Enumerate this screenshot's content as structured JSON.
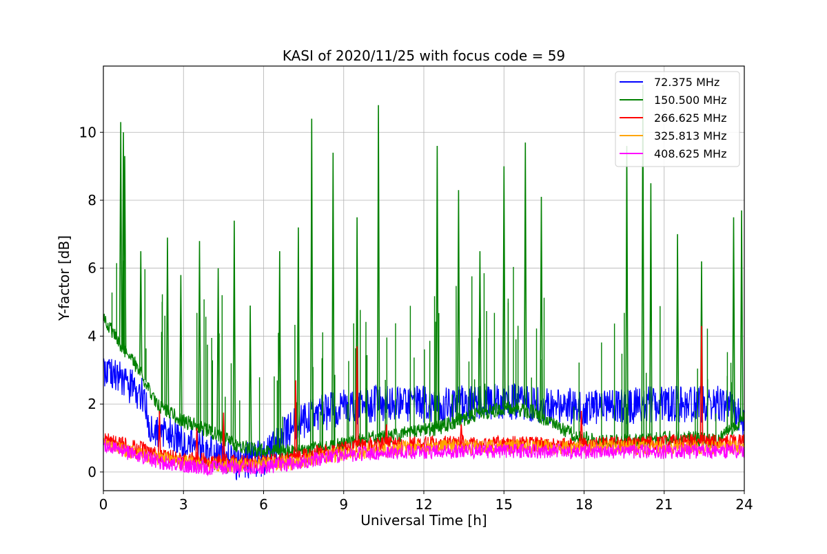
{
  "chart_data": {
    "type": "line",
    "title": "KASI of 2020/11/25 with focus code = 59",
    "xlabel": "Universal Time [h]",
    "ylabel": "Y-factor [dB]",
    "xlim": [
      0,
      24
    ],
    "ylim": [
      -0.55,
      11.95
    ],
    "x_ticks": [
      0,
      3,
      6,
      9,
      12,
      15,
      18,
      21,
      24
    ],
    "y_ticks": [
      0,
      2,
      4,
      6,
      8,
      10
    ],
    "grid": true,
    "legend_position": "top-right",
    "series": [
      {
        "name": " 72.375 MHz",
        "color": "#0000ff",
        "baseline": {
          "x": [
            0,
            0.5,
            1.0,
            1.5,
            1.7,
            2.0,
            3.0,
            4.0,
            5.0,
            6.0,
            6.5,
            7.0,
            8.0,
            9.0,
            10.0,
            11.0,
            12.0,
            13.0,
            14.0,
            15.0,
            16.0,
            17.0,
            18.0,
            19.0,
            20.0,
            21.0,
            22.0,
            23.0,
            23.5,
            24.0
          ],
          "y": [
            3.1,
            2.8,
            2.5,
            2.3,
            1.4,
            1.3,
            0.9,
            0.6,
            0.3,
            0.4,
            0.9,
            1.3,
            1.7,
            1.9,
            2.0,
            2.0,
            2.0,
            2.0,
            2.0,
            2.1,
            2.0,
            1.95,
            1.9,
            1.9,
            1.95,
            2.0,
            2.0,
            2.0,
            1.8,
            1.5
          ]
        },
        "band": 0.55
      },
      {
        "name": "150.500 MHz",
        "color": "#008000",
        "baseline": {
          "x": [
            0,
            0.5,
            1.0,
            1.5,
            2.0,
            3.0,
            4.0,
            5.0,
            6.0,
            7.0,
            8.0,
            9.0,
            10.0,
            11.0,
            12.0,
            13.0,
            14.0,
            15.0,
            16.0,
            17.0,
            18.0,
            19.0,
            20.0,
            21.0,
            22.0,
            23.0,
            24.0
          ],
          "y": [
            4.6,
            3.9,
            3.4,
            2.8,
            2.0,
            1.5,
            1.2,
            0.8,
            0.6,
            0.6,
            0.7,
            0.8,
            1.0,
            1.1,
            1.2,
            1.4,
            1.7,
            1.9,
            1.8,
            1.3,
            1.0,
            0.9,
            0.9,
            1.0,
            1.0,
            0.9,
            1.6
          ]
        },
        "spikes": {
          "x": [
            0.65,
            0.75,
            0.8,
            1.4,
            2.4,
            2.9,
            3.6,
            4.3,
            4.9,
            5.5,
            6.6,
            7.3,
            7.8,
            8.6,
            9.5,
            10.3,
            12.5,
            13.3,
            14.1,
            15.0,
            15.8,
            16.4,
            19.6,
            20.2,
            20.5,
            21.5,
            22.4,
            23.6,
            23.9
          ],
          "y": [
            10.3,
            10.0,
            9.3,
            6.5,
            6.9,
            5.8,
            6.8,
            6.0,
            7.4,
            4.9,
            6.5,
            7.2,
            10.4,
            9.4,
            7.5,
            10.8,
            9.6,
            8.3,
            6.5,
            9.0,
            9.7,
            8.1,
            9.6,
            11.4,
            8.5,
            7.0,
            6.2,
            7.5,
            7.7
          ]
        }
      },
      {
        "name": "266.625 MHz",
        "color": "#ff0000",
        "baseline": {
          "x": [
            0,
            1.0,
            1.6,
            2.0,
            3.0,
            4.0,
            5.0,
            6.0,
            7.0,
            8.0,
            9.0,
            10.0,
            11.0,
            12.0,
            13.0,
            15.0,
            17.0,
            18.0,
            20.0,
            22.0,
            24.0
          ],
          "y": [
            0.95,
            0.8,
            0.65,
            0.5,
            0.4,
            0.35,
            0.3,
            0.3,
            0.4,
            0.55,
            0.7,
            0.8,
            0.85,
            0.85,
            0.85,
            0.85,
            0.8,
            0.8,
            0.85,
            0.9,
            0.9
          ]
        },
        "spikes": {
          "x": [
            2.1,
            3.5,
            4.5,
            7.2,
            9.5,
            10.6,
            13.4,
            17.9,
            22.4
          ],
          "y": [
            1.8,
            1.3,
            1.75,
            2.7,
            3.7,
            1.4,
            1.4,
            1.8,
            4.3
          ]
        }
      },
      {
        "name": "325.813 MHz",
        "color": "#ffa500",
        "baseline": {
          "x": [
            0,
            1.0,
            2.0,
            3.0,
            4.0,
            5.0,
            6.0,
            7.0,
            8.0,
            9.0,
            10.0,
            11.0,
            12.0,
            14.0,
            16.0,
            18.0,
            20.0,
            22.0,
            24.0
          ],
          "y": [
            0.8,
            0.6,
            0.42,
            0.3,
            0.22,
            0.2,
            0.22,
            0.28,
            0.4,
            0.55,
            0.62,
            0.68,
            0.72,
            0.75,
            0.75,
            0.72,
            0.72,
            0.72,
            0.72
          ]
        }
      },
      {
        "name": "408.625 MHz",
        "color": "#ff00ff",
        "baseline": {
          "x": [
            0,
            1.0,
            1.7,
            2.0,
            3.0,
            4.0,
            5.0,
            6.0,
            7.0,
            8.0,
            9.0,
            10.0,
            11.0,
            12.0,
            14.0,
            16.0,
            18.0,
            20.0,
            22.0,
            24.0
          ],
          "y": [
            0.78,
            0.55,
            0.4,
            0.3,
            0.2,
            0.12,
            0.14,
            0.15,
            0.25,
            0.38,
            0.5,
            0.55,
            0.58,
            0.6,
            0.62,
            0.62,
            0.6,
            0.6,
            0.6,
            0.62
          ]
        }
      }
    ]
  }
}
